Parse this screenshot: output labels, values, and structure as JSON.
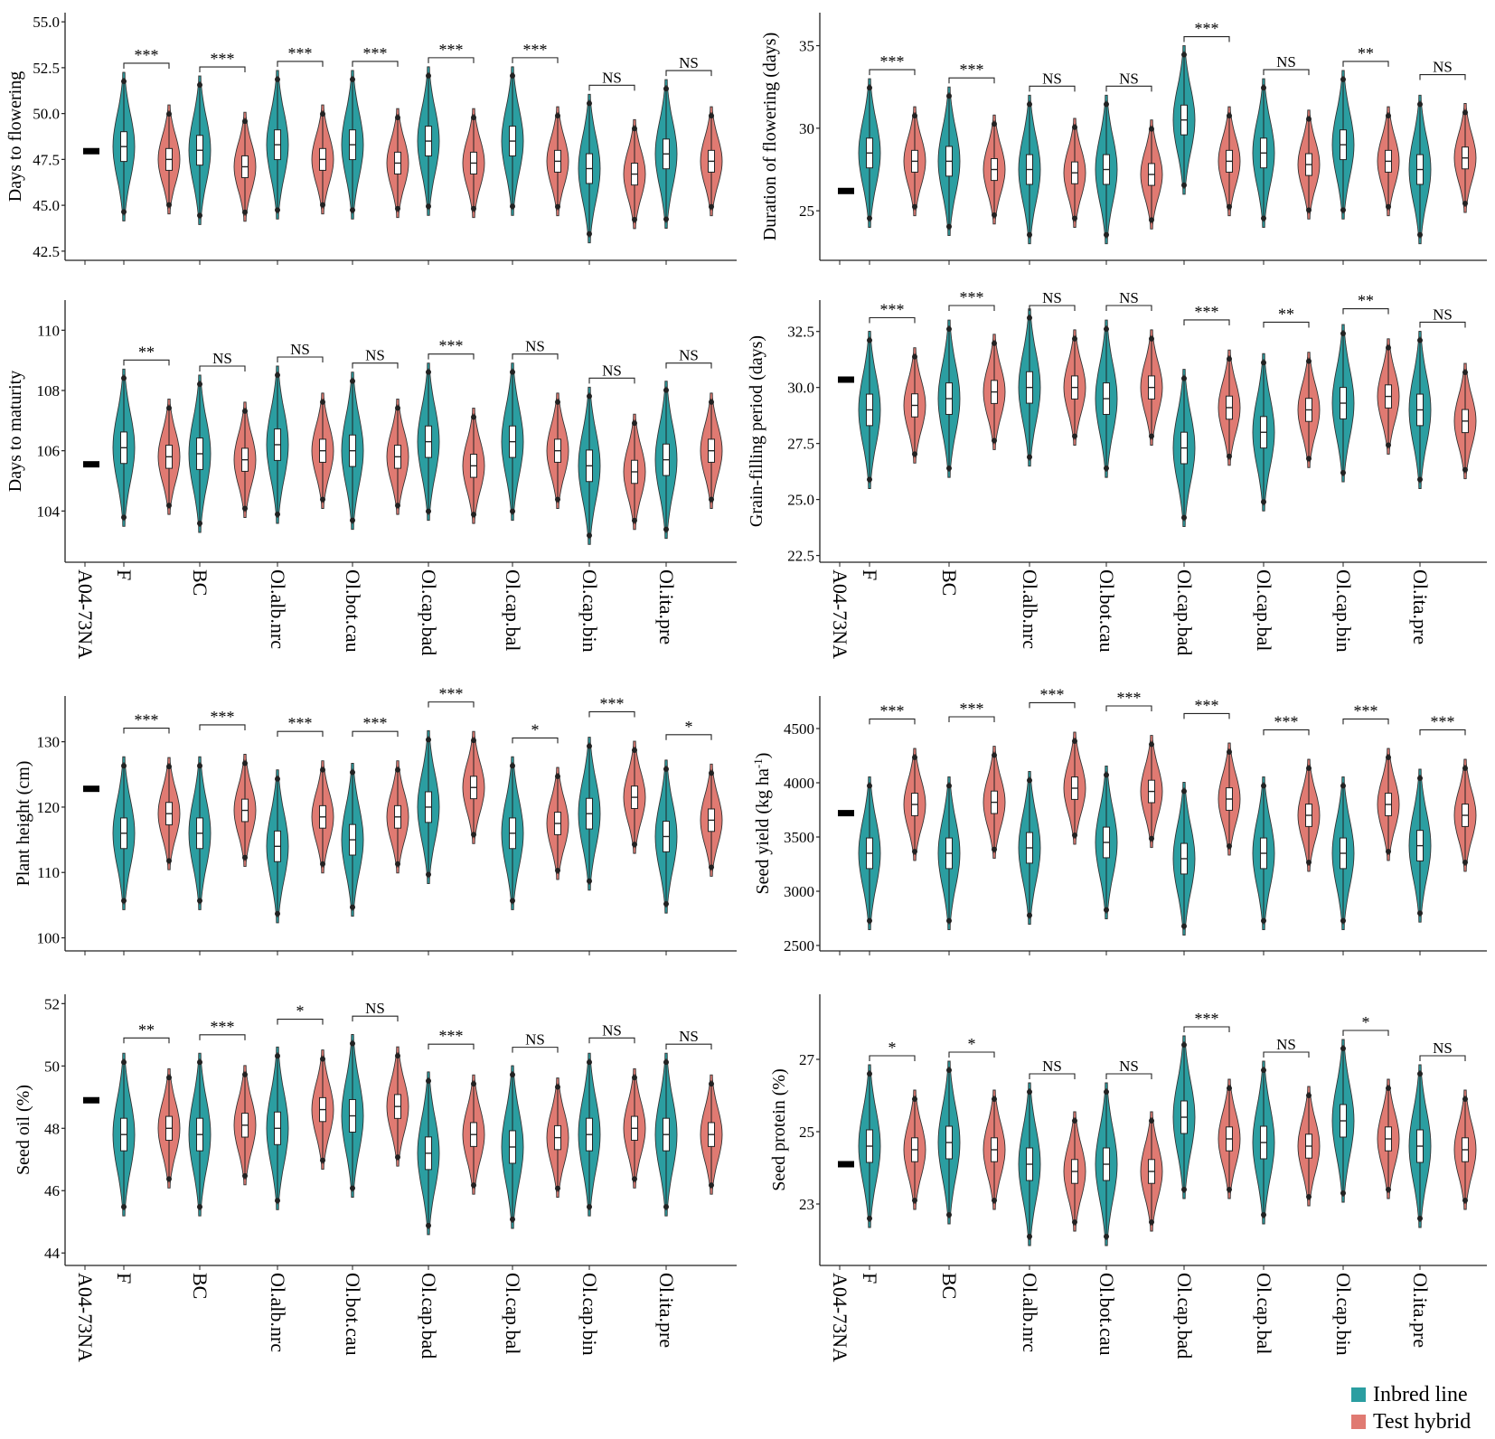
{
  "chart_data": [
    {
      "type": "violin",
      "panel": "Days to flowering",
      "ylabel": "Days to flowering",
      "ylim": [
        42.0,
        55.5
      ],
      "yticks": [
        42.5,
        45.0,
        47.5,
        50.0,
        52.5,
        55.0
      ],
      "ytick_labels": [
        "42.5",
        "45.0",
        "47.5",
        "50.0",
        "52.5",
        "55.0"
      ],
      "check_label": "A04-73NA",
      "check_value": 47.95,
      "categories": [
        "F",
        "BC",
        "Ol.alb.nrc",
        "Ol.bot.cau",
        "Ol.cap.bad",
        "Ol.cap.bal",
        "Ol.cap.bin",
        "Ol.ita.pre"
      ],
      "show_xlabels": false,
      "inbred_median": [
        48.2,
        48.0,
        48.3,
        48.3,
        48.5,
        48.5,
        47.0,
        47.8
      ],
      "hybrid_median": [
        47.5,
        47.1,
        47.5,
        47.3,
        47.3,
        47.4,
        46.7,
        47.4
      ],
      "significance": [
        "***",
        "***",
        "***",
        "***",
        "***",
        "***",
        "NS",
        "NS"
      ]
    },
    {
      "type": "violin",
      "panel": "Duration of flowering",
      "ylabel": "Duration of flowering (days)",
      "ylim": [
        22.0,
        37.0
      ],
      "yticks": [
        25,
        30,
        35
      ],
      "ytick_labels": [
        "25",
        "30",
        "35"
      ],
      "check_label": "A04-73NA",
      "check_value": 26.2,
      "categories": [
        "F",
        "BC",
        "Ol.alb.nrc",
        "Ol.bot.cau",
        "Ol.cap.bad",
        "Ol.cap.bal",
        "Ol.cap.bin",
        "Ol.ita.pre"
      ],
      "show_xlabels": false,
      "inbred_median": [
        28.5,
        28.0,
        27.5,
        27.5,
        30.5,
        28.5,
        29.0,
        27.5
      ],
      "hybrid_median": [
        28.0,
        27.5,
        27.3,
        27.2,
        28.0,
        27.8,
        28.0,
        28.2
      ],
      "significance": [
        "***",
        "***",
        "NS",
        "NS",
        "***",
        "NS",
        "**",
        "NS"
      ]
    },
    {
      "type": "violin",
      "panel": "Days to maturity",
      "ylabel": "Days to maturity",
      "ylim": [
        102.3,
        111.0
      ],
      "yticks": [
        104,
        106,
        108,
        110
      ],
      "ytick_labels": [
        "104",
        "106",
        "108",
        "110"
      ],
      "check_label": "A04-73NA",
      "check_value": 105.55,
      "categories": [
        "F",
        "BC",
        "Ol.alb.nrc",
        "Ol.bot.cau",
        "Ol.cap.bad",
        "Ol.cap.bal",
        "Ol.cap.bin",
        "Ol.ita.pre"
      ],
      "show_xlabels": true,
      "inbred_median": [
        106.1,
        105.9,
        106.2,
        106.0,
        106.3,
        106.3,
        105.5,
        105.7
      ],
      "hybrid_median": [
        105.8,
        105.7,
        106.0,
        105.8,
        105.5,
        106.0,
        105.3,
        106.0
      ],
      "significance": [
        "**",
        "NS",
        "NS",
        "NS",
        "***",
        "NS",
        "NS",
        "NS"
      ]
    },
    {
      "type": "violin",
      "panel": "Grain-filling period",
      "ylabel": "Grain-filling period (days)",
      "ylim": [
        22.2,
        33.9
      ],
      "yticks": [
        22.5,
        25.0,
        27.5,
        30.0,
        32.5
      ],
      "ytick_labels": [
        "22.5",
        "25.0",
        "27.5",
        "30.0",
        "32.5"
      ],
      "check_label": "A04-73NA",
      "check_value": 30.35,
      "categories": [
        "F",
        "BC",
        "Ol.alb.nrc",
        "Ol.bot.cau",
        "Ol.cap.bad",
        "Ol.cap.bal",
        "Ol.cap.bin",
        "Ol.ita.pre"
      ],
      "show_xlabels": true,
      "inbred_median": [
        29.0,
        29.5,
        30.0,
        29.5,
        27.3,
        28.0,
        29.3,
        29.0
      ],
      "hybrid_median": [
        29.2,
        29.8,
        30.0,
        30.0,
        29.1,
        29.0,
        29.6,
        28.5
      ],
      "significance": [
        "***",
        "***",
        "NS",
        "NS",
        "***",
        "**",
        "**",
        "NS"
      ]
    },
    {
      "type": "violin",
      "panel": "Plant height",
      "ylabel": "Plant height (cm)",
      "ylim": [
        98.0,
        137.0
      ],
      "yticks": [
        100,
        110,
        120,
        130
      ],
      "ytick_labels": [
        "100",
        "110",
        "120",
        "130"
      ],
      "check_label": "A04-73NA",
      "check_value": 122.8,
      "categories": [
        "F",
        "BC",
        "Ol.alb.nrc",
        "Ol.bot.cau",
        "Ol.cap.bad",
        "Ol.cap.bal",
        "Ol.cap.bin",
        "Ol.ita.pre"
      ],
      "show_xlabels": false,
      "inbred_median": [
        116.0,
        116.0,
        114.0,
        115.0,
        120.0,
        116.0,
        119.0,
        115.5
      ],
      "hybrid_median": [
        119.0,
        119.5,
        118.5,
        118.5,
        123.0,
        117.5,
        121.5,
        118.0
      ],
      "significance": [
        "***",
        "***",
        "***",
        "***",
        "***",
        "*",
        "***",
        "*"
      ]
    },
    {
      "type": "violin",
      "panel": "Seed yield",
      "ylabel": "Seed yield (kg ha",
      "ylabel_sup": "-1",
      "ylabel_end": ")",
      "ylim": [
        2450,
        4800
      ],
      "yticks": [
        2500,
        3000,
        3500,
        4000,
        4500
      ],
      "ytick_labels": [
        "2500",
        "3000",
        "3500",
        "4000",
        "4500"
      ],
      "check_label": "A04-73NA",
      "check_value": 3720,
      "categories": [
        "F",
        "BC",
        "Ol.alb.nrc",
        "Ol.bot.cau",
        "Ol.cap.bad",
        "Ol.cap.bal",
        "Ol.cap.bin",
        "Ol.ita.pre"
      ],
      "show_xlabels": false,
      "inbred_median": [
        3350,
        3350,
        3400,
        3450,
        3300,
        3350,
        3350,
        3420
      ],
      "hybrid_median": [
        3800,
        3820,
        3950,
        3920,
        3850,
        3700,
        3800,
        3700
      ],
      "significance": [
        "***",
        "***",
        "***",
        "***",
        "***",
        "***",
        "***",
        "***"
      ]
    },
    {
      "type": "violin",
      "panel": "Seed oil",
      "ylabel": "Seed oil (%)",
      "ylim": [
        43.6,
        52.3
      ],
      "yticks": [
        44,
        46,
        48,
        50,
        52
      ],
      "ytick_labels": [
        "44",
        "46",
        "48",
        "50",
        "52"
      ],
      "check_label": "A04-73NA",
      "check_value": 48.9,
      "categories": [
        "F",
        "BC",
        "Ol.alb.nrc",
        "Ol.bot.cau",
        "Ol.cap.bad",
        "Ol.cap.bal",
        "Ol.cap.bin",
        "Ol.ita.pre"
      ],
      "show_xlabels": true,
      "inbred_median": [
        47.8,
        47.8,
        48.0,
        48.4,
        47.2,
        47.4,
        47.8,
        47.8
      ],
      "hybrid_median": [
        48.0,
        48.1,
        48.6,
        48.7,
        47.8,
        47.7,
        48.0,
        47.8
      ],
      "significance": [
        "**",
        "***",
        "*",
        "NS",
        "***",
        "NS",
        "NS",
        "NS"
      ]
    },
    {
      "type": "violin",
      "panel": "Seed protein",
      "ylabel": "Seed protein (%)",
      "ylim": [
        21.3,
        28.8
      ],
      "yticks": [
        23,
        25,
        27
      ],
      "ytick_labels": [
        "23",
        "25",
        "27"
      ],
      "check_label": "A04-73NA",
      "check_value": 24.1,
      "categories": [
        "F",
        "BC",
        "Ol.alb.nrc",
        "Ol.bot.cau",
        "Ol.cap.bad",
        "Ol.cap.bal",
        "Ol.cap.bin",
        "Ol.ita.pre"
      ],
      "show_xlabels": true,
      "inbred_median": [
        24.6,
        24.7,
        24.1,
        24.1,
        25.4,
        24.7,
        25.3,
        24.6
      ],
      "hybrid_median": [
        24.5,
        24.5,
        23.9,
        23.9,
        24.8,
        24.6,
        24.8,
        24.5
      ],
      "significance": [
        "*",
        "*",
        "NS",
        "NS",
        "***",
        "NS",
        "*",
        "NS"
      ]
    }
  ],
  "legend": {
    "items": [
      {
        "label": "Inbred line",
        "color": "#2b9ea1"
      },
      {
        "label": "Test hybrid",
        "color": "#e07a72"
      }
    ]
  },
  "colors": {
    "inbred": "#2b9ea1",
    "hybrid": "#e07a72",
    "check": "#000000",
    "axis": "#222222"
  }
}
